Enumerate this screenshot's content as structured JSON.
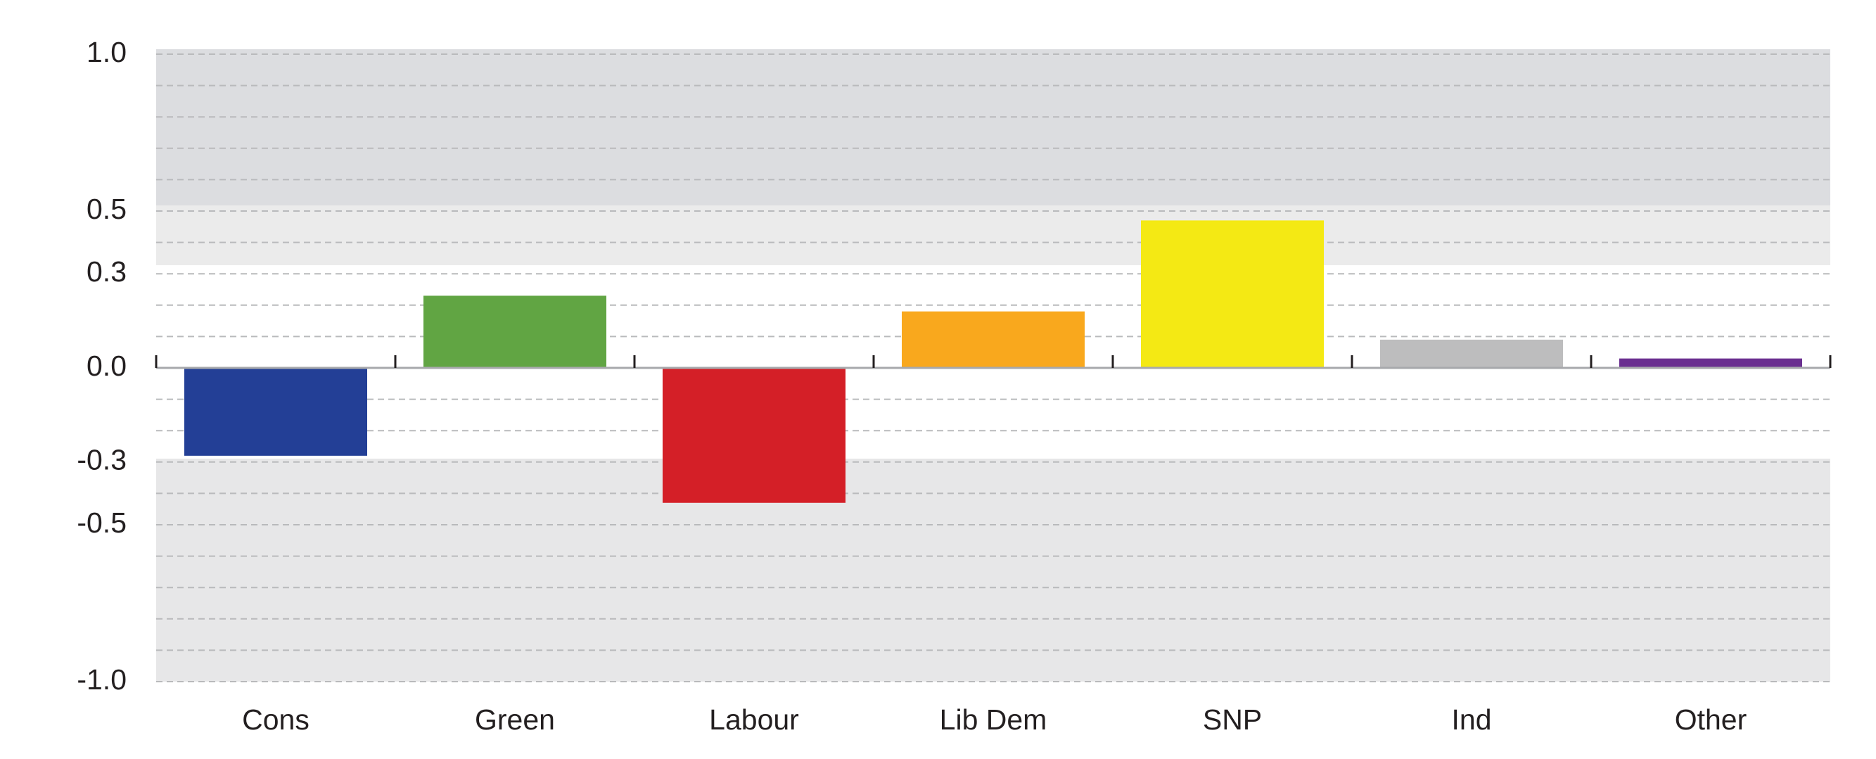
{
  "chart_data": {
    "type": "bar",
    "categories": [
      "Cons",
      "Green",
      "Labour",
      "Lib Dem",
      "SNP",
      "Ind",
      "Other"
    ],
    "values": [
      -0.28,
      0.23,
      -0.43,
      0.18,
      0.47,
      0.09,
      0.03
    ],
    "colors": [
      "#233f96",
      "#61a543",
      "#d41f27",
      "#f9a81d",
      "#f4e914",
      "#bdbdbe",
      "#6a2f90"
    ],
    "ylim": [
      -1.0,
      1.0
    ],
    "yticks": [
      {
        "value": 1.0,
        "label": "1.0"
      },
      0.5,
      0.3,
      {
        "value": 0.0,
        "label": "0.0"
      },
      -0.3,
      -0.5,
      {
        "value": -1.0,
        "label": "-1.0"
      }
    ],
    "ygrid": [
      1.0,
      0.9,
      0.8,
      0.7,
      0.6,
      0.5,
      0.4,
      0.3,
      0.2,
      0.1,
      -0.1,
      -0.2,
      -0.3,
      -0.4,
      -0.5,
      -0.6,
      -0.7,
      -0.8,
      -0.9,
      -1.0
    ],
    "grid": true
  }
}
